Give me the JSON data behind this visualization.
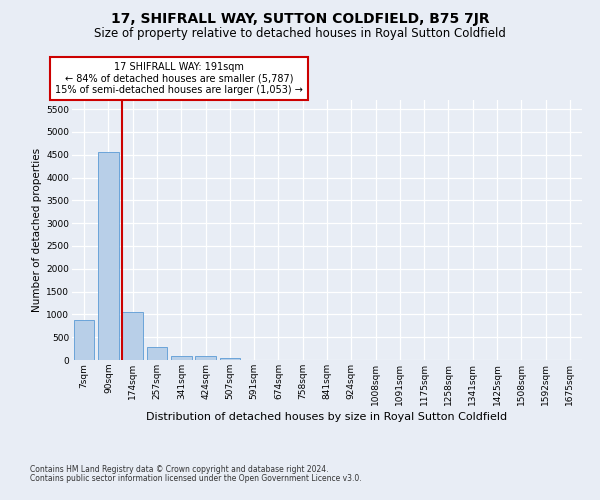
{
  "title": "17, SHIFRALL WAY, SUTTON COLDFIELD, B75 7JR",
  "subtitle": "Size of property relative to detached houses in Royal Sutton Coldfield",
  "xlabel": "Distribution of detached houses by size in Royal Sutton Coldfield",
  "ylabel": "Number of detached properties",
  "footnote1": "Contains HM Land Registry data © Crown copyright and database right 2024.",
  "footnote2": "Contains public sector information licensed under the Open Government Licence v3.0.",
  "bar_labels": [
    "7sqm",
    "90sqm",
    "174sqm",
    "257sqm",
    "341sqm",
    "424sqm",
    "507sqm",
    "591sqm",
    "674sqm",
    "758sqm",
    "841sqm",
    "924sqm",
    "1008sqm",
    "1091sqm",
    "1175sqm",
    "1258sqm",
    "1341sqm",
    "1425sqm",
    "1508sqm",
    "1592sqm",
    "1675sqm"
  ],
  "bar_values": [
    880,
    4550,
    1060,
    280,
    90,
    80,
    45,
    0,
    0,
    0,
    0,
    0,
    0,
    0,
    0,
    0,
    0,
    0,
    0,
    0,
    0
  ],
  "bar_color": "#b8cfe8",
  "bar_edge_color": "#5b9bd5",
  "vline_color": "#cc0000",
  "annotation_line1": "17 SHIFRALL WAY: 191sqm",
  "annotation_line2": "← 84% of detached houses are smaller (5,787)",
  "annotation_line3": "15% of semi-detached houses are larger (1,053) →",
  "annotation_box_facecolor": "#ffffff",
  "annotation_box_edgecolor": "#cc0000",
  "ylim_max": 5700,
  "yticks": [
    0,
    500,
    1000,
    1500,
    2000,
    2500,
    3000,
    3500,
    4000,
    4500,
    5000,
    5500
  ],
  "bg_color": "#e8edf5",
  "grid_color": "#ffffff",
  "title_fontsize": 10,
  "subtitle_fontsize": 8.5,
  "ylabel_fontsize": 7.5,
  "xlabel_fontsize": 8,
  "tick_fontsize": 6.5,
  "annot_fontsize": 7,
  "footnote_fontsize": 5.5
}
